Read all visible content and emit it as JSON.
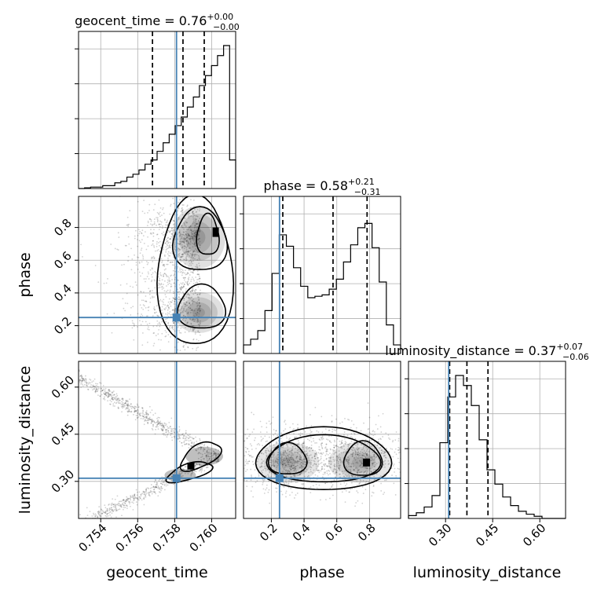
{
  "figure": {
    "kind": "corner plot",
    "truth_color": "#4682b4",
    "hist_color": "#000000",
    "density_color": "#000000"
  },
  "chart_data": {
    "type": "corner",
    "parameters": [
      "geocent_time",
      "phase",
      "luminosity_distance"
    ],
    "titles": [
      {
        "label": "geocent_time = 0.76",
        "plus": "+0.00",
        "minus": "−0.00"
      },
      {
        "label": "phase = 0.58",
        "plus": "+0.21",
        "minus": "−0.31"
      },
      {
        "label": "luminosity_distance = 0.37",
        "plus": "+0.07",
        "minus": "−0.06"
      }
    ],
    "ranges": {
      "geocent_time": [
        0.7528,
        0.7613
      ],
      "phase": [
        0.03,
        0.99
      ],
      "luminosity_distance": [
        0.182,
        0.682
      ]
    },
    "ticks": {
      "geocent_time": {
        "values": [
          0.754,
          0.756,
          0.758,
          0.76
        ],
        "labels": [
          "0.754",
          "0.756",
          "0.758",
          "0.760"
        ]
      },
      "phase": {
        "values": [
          0.2,
          0.4,
          0.6,
          0.8
        ],
        "labels": [
          "0.2",
          "0.4",
          "0.6",
          "0.8"
        ]
      },
      "luminosity_distance": {
        "values": [
          0.3,
          0.45,
          0.6
        ],
        "labels": [
          "0.30",
          "0.45",
          "0.60"
        ]
      }
    },
    "truths": {
      "geocent_time": 0.7581,
      "phase": 0.25,
      "luminosity_distance": 0.31
    },
    "quantiles": {
      "geocent_time": [
        0.7568,
        0.75845,
        0.7596
      ],
      "phase": [
        0.27,
        0.577,
        0.785
      ],
      "luminosity_distance": [
        0.313,
        0.368,
        0.435
      ]
    },
    "histograms": {
      "geocent_time": {
        "bins": [
          0.7528,
          0.7613
        ],
        "counts": [
          0.0,
          0.005,
          0.01,
          0.01,
          0.02,
          0.02,
          0.04,
          0.05,
          0.08,
          0.1,
          0.13,
          0.17,
          0.2,
          0.26,
          0.32,
          0.38,
          0.44,
          0.5,
          0.57,
          0.64,
          0.72,
          0.79,
          0.86,
          0.93,
          1.0,
          0.2
        ]
      },
      "phase": {
        "bins": [
          0.03,
          0.99
        ],
        "counts": [
          0.06,
          0.1,
          0.16,
          0.3,
          0.56,
          0.83,
          0.75,
          0.6,
          0.47,
          0.39,
          0.4,
          0.41,
          0.45,
          0.52,
          0.64,
          0.76,
          0.88,
          0.91,
          0.74,
          0.5,
          0.2,
          0.06
        ]
      },
      "luminosity_distance": {
        "bins": [
          0.182,
          0.682
        ],
        "counts": [
          0.02,
          0.04,
          0.08,
          0.16,
          0.53,
          0.85,
          1.0,
          0.93,
          0.79,
          0.55,
          0.34,
          0.24,
          0.15,
          0.09,
          0.05,
          0.03,
          0.015,
          0.0,
          0.0,
          0.0
        ]
      }
    },
    "grid": true,
    "legend": "none"
  }
}
